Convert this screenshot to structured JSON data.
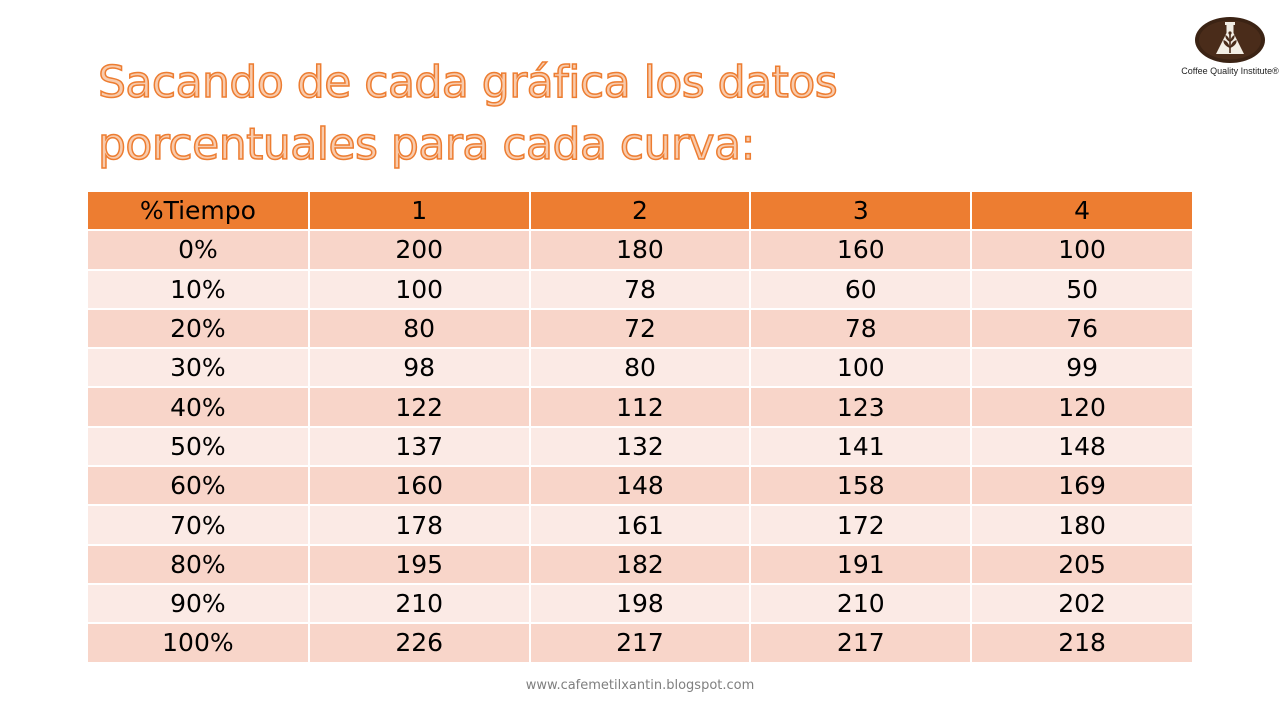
{
  "title": {
    "line1": "Sacando de cada gráfica los datos",
    "line2": "porcentuales para cada curva:"
  },
  "logo": {
    "caption": "Coffee Quality Institute®",
    "icon": "coffee-plant-flask-icon"
  },
  "table": {
    "headers": [
      "%Tiempo",
      "1",
      "2",
      "3",
      "4"
    ],
    "rows": [
      [
        "0%",
        "200",
        "180",
        "160",
        "100"
      ],
      [
        "10%",
        "100",
        "78",
        "60",
        "50"
      ],
      [
        "20%",
        "80",
        "72",
        "78",
        "76"
      ],
      [
        "30%",
        "98",
        "80",
        "100",
        "99"
      ],
      [
        "40%",
        "122",
        "112",
        "123",
        "120"
      ],
      [
        "50%",
        "137",
        "132",
        "141",
        "148"
      ],
      [
        "60%",
        "160",
        "148",
        "158",
        "169"
      ],
      [
        "70%",
        "178",
        "161",
        "172",
        "180"
      ],
      [
        "80%",
        "195",
        "182",
        "191",
        "205"
      ],
      [
        "90%",
        "210",
        "198",
        "210",
        "202"
      ],
      [
        "100%",
        "226",
        "217",
        "217",
        "218"
      ]
    ]
  },
  "footer": {
    "url": "www.cafemetilxantin.blogspot.com"
  },
  "colors": {
    "header": "#ed7d31",
    "row_dark": "#f8d5c9",
    "row_light": "#fbeae5",
    "title_fill": "#f8cbad",
    "title_stroke": "#ed7d31"
  }
}
